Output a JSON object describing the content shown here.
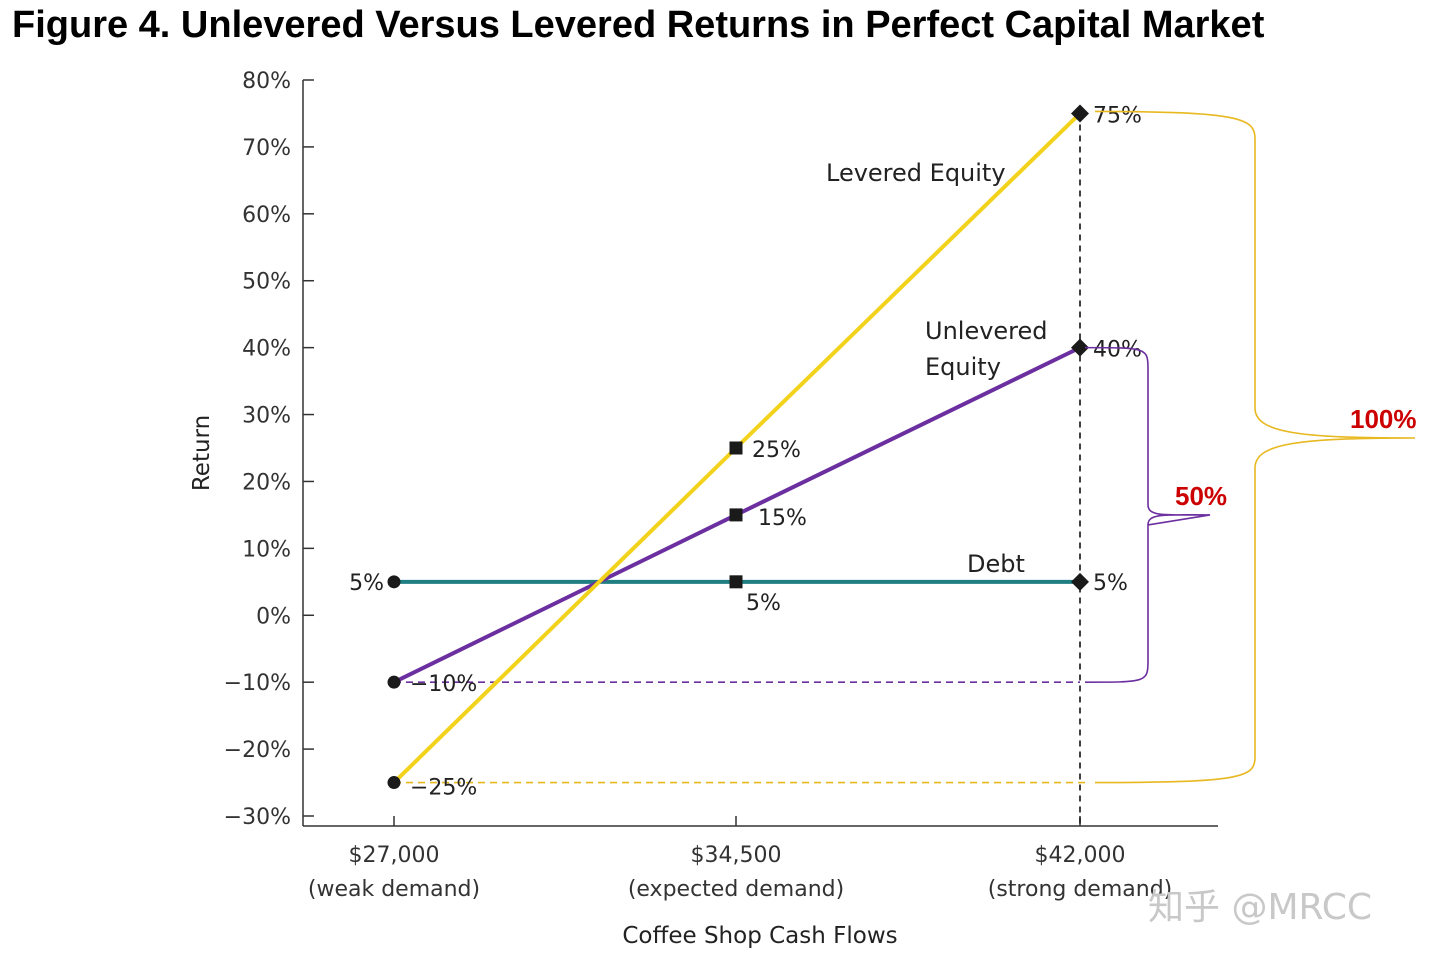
{
  "title": "Figure 4. Unlevered Versus Levered Returns in Perfect Capital Market",
  "watermark": "知乎 @MRCC",
  "chart_data": {
    "type": "line",
    "title": "Figure 4. Unlevered Versus Levered Returns in Perfect Capital Market",
    "xlabel": "Coffee Shop Cash Flows",
    "ylabel": "Return",
    "ylim": [
      -30,
      80
    ],
    "yticks": [
      80,
      70,
      60,
      50,
      40,
      30,
      20,
      10,
      0,
      -10,
      -20,
      -30
    ],
    "ytick_labels": [
      "80%",
      "70%",
      "60%",
      "50%",
      "40%",
      "30%",
      "20%",
      "10%",
      "0%",
      "−10%",
      "−20%",
      "−30%"
    ],
    "categories": [
      {
        "value": "$27,000",
        "note": "(weak demand)"
      },
      {
        "value": "$34,500",
        "note": "(expected demand)"
      },
      {
        "value": "$42,000",
        "note": "(strong demand)"
      }
    ],
    "series": [
      {
        "name": "Levered Equity",
        "label": "Levered Equity",
        "color": "#f2d21b",
        "values": [
          -25,
          25,
          75
        ],
        "point_labels": [
          "−25%",
          "25%",
          "75%"
        ]
      },
      {
        "name": "Unlevered Equity",
        "label_lines": [
          "Unlevered",
          "Equity"
        ],
        "color": "#6b2fa0",
        "values": [
          -10,
          15,
          40
        ],
        "point_labels": [
          "−10%",
          "15%",
          "40%"
        ]
      },
      {
        "name": "Debt",
        "label": "Debt",
        "color": "#1f7f82",
        "values": [
          5,
          5,
          5
        ],
        "point_labels": [
          "5%",
          "5%",
          "5%"
        ]
      }
    ],
    "annotations": [
      {
        "type": "brace",
        "label": "50%",
        "color": "#6b2fa0",
        "range": [
          -10,
          40
        ]
      },
      {
        "type": "brace",
        "label": "100%",
        "color": "#e8b820",
        "range": [
          -25,
          75
        ]
      }
    ]
  }
}
